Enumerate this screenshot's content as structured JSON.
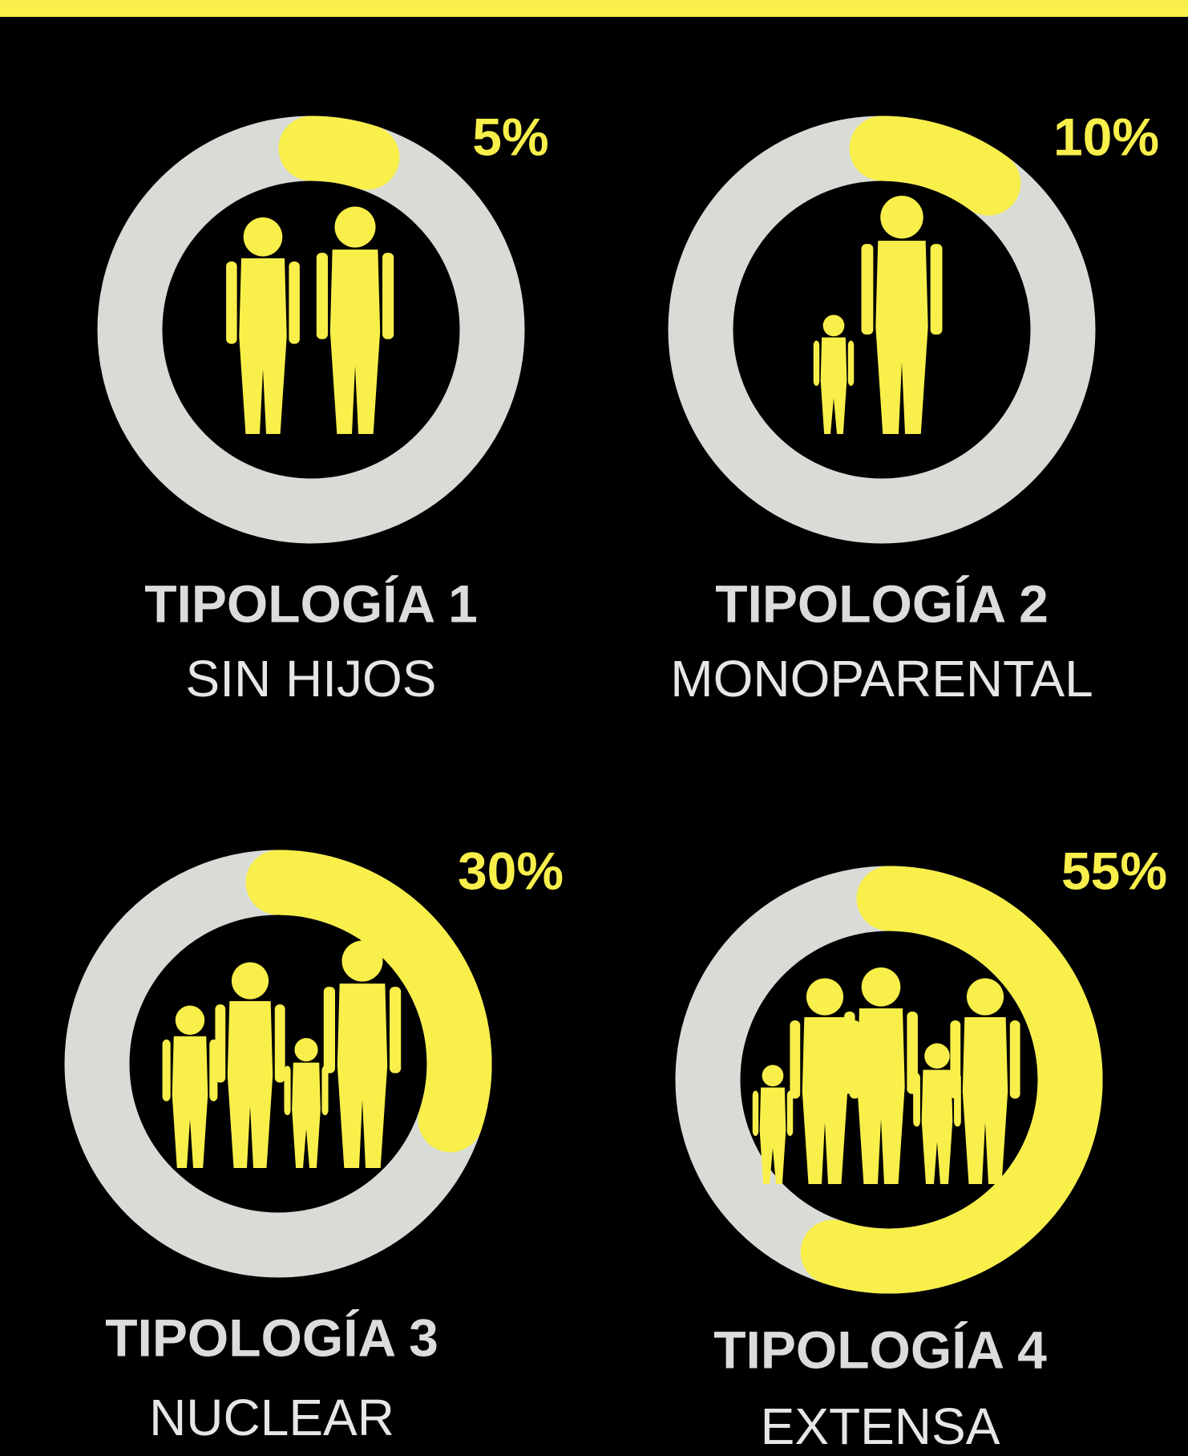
{
  "chart_data": [
    {
      "type": "donut",
      "title": "TIPOLOGÍA 1",
      "subtitle": "SIN HIJOS",
      "values": [
        5
      ],
      "value_labels": [
        "5%"
      ],
      "color": "#f9ef4b"
    },
    {
      "type": "donut",
      "title": "TIPOLOGÍA 2",
      "subtitle": "MONOPARENTAL",
      "values": [
        10
      ],
      "value_labels": [
        "10%"
      ],
      "color": "#f9ef4b"
    },
    {
      "type": "donut",
      "title": "TIPOLOGÍA 3",
      "subtitle": "NUCLEAR",
      "values": [
        30
      ],
      "value_labels": [
        "30%"
      ],
      "color": "#f9ef4b"
    },
    {
      "type": "donut",
      "title": "TIPOLOGÍA 4",
      "subtitle": "EXTENSA",
      "values": [
        55
      ],
      "value_labels": [
        "55%"
      ],
      "color": "#f9ef4b"
    }
  ]
}
